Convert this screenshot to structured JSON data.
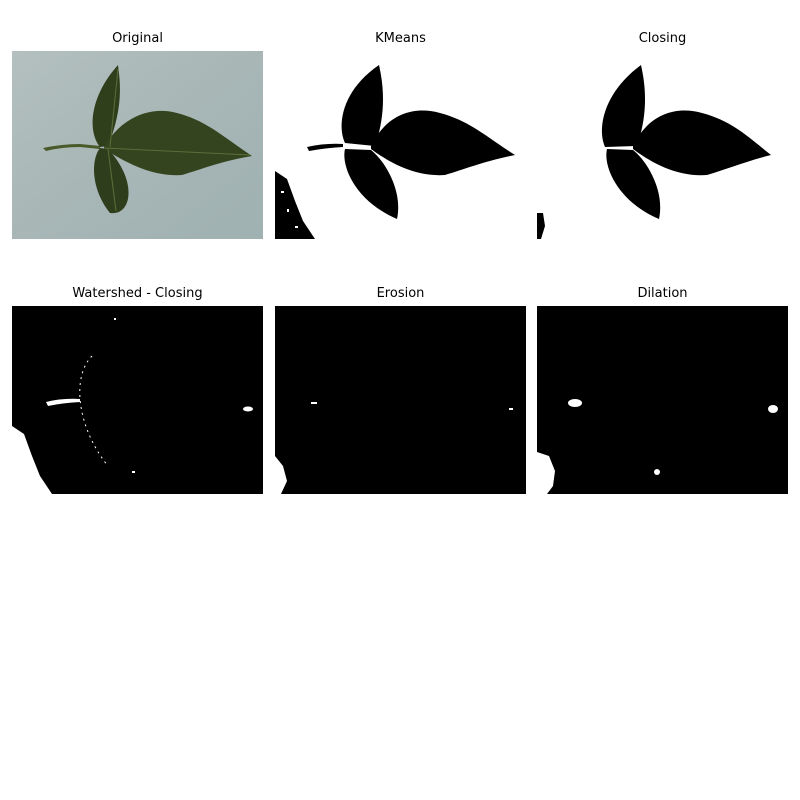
{
  "figure": {
    "panels": [
      {
        "id": "original",
        "title": "Original"
      },
      {
        "id": "kmeans",
        "title": "KMeans"
      },
      {
        "id": "closing",
        "title": "Closing"
      },
      {
        "id": "watershed-closing",
        "title": "Watershed - Closing"
      },
      {
        "id": "erosion",
        "title": "Erosion"
      },
      {
        "id": "dilation",
        "title": "Dilation"
      }
    ]
  },
  "colors": {
    "background": "#ffffff",
    "leaf": "#2f3f1c",
    "leaf_dark": "#1d2812",
    "paper": "#a9b7b7",
    "mask_black": "#000000",
    "mask_white": "#ffffff"
  }
}
